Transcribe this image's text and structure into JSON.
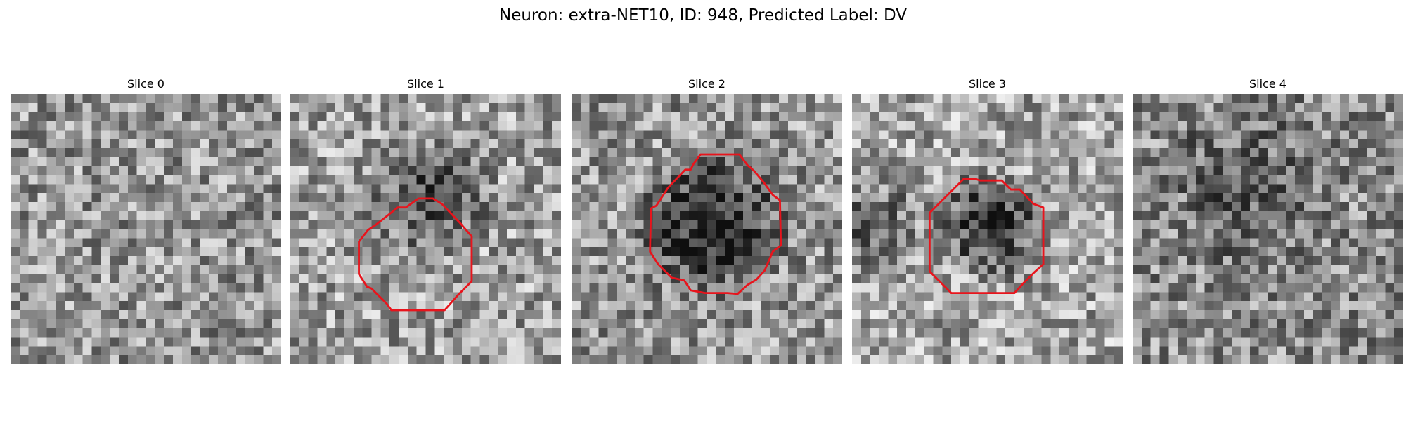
{
  "figure": {
    "title": "Neuron: extra-NET10, ID: 948, Predicted Label: DV"
  },
  "colors": {
    "contour": "#e8141c",
    "background": "#ffffff"
  },
  "panels": [
    {
      "title": "Slice 0",
      "has_contour": false,
      "dark_blob": false
    },
    {
      "title": "Slice 1",
      "has_contour": true,
      "dark_blob": true
    },
    {
      "title": "Slice 2",
      "has_contour": true,
      "dark_blob": true
    },
    {
      "title": "Slice 3",
      "has_contour": true,
      "dark_blob": true
    },
    {
      "title": "Slice 4",
      "has_contour": false,
      "dark_blob": false
    }
  ]
}
